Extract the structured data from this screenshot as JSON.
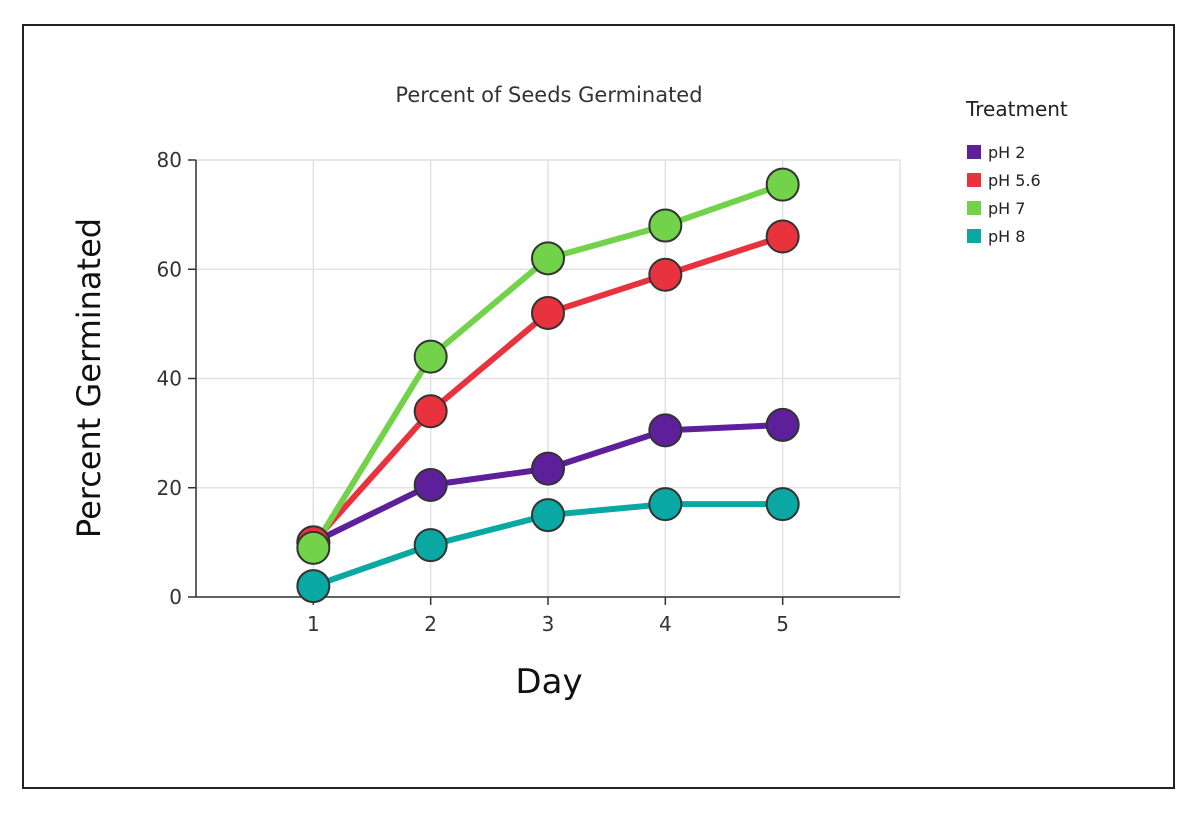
{
  "chart_data": {
    "type": "line",
    "title": "Percent of Seeds Germinated",
    "xlabel": "Day",
    "ylabel": "Percent Germinated",
    "x": [
      1,
      2,
      3,
      4,
      5
    ],
    "xlim": [
      0,
      6
    ],
    "ylim": [
      0,
      80
    ],
    "yticks": [
      0,
      20,
      40,
      60,
      80
    ],
    "xticks": [
      1,
      2,
      3,
      4,
      5
    ],
    "grid": true,
    "legend": {
      "title": "Treatment",
      "position": "right"
    },
    "series": [
      {
        "name": "pH 2",
        "color": "#5e1f9a",
        "values": [
          10,
          20.5,
          23.5,
          30.5,
          31.5
        ]
      },
      {
        "name": "pH 5.6",
        "color": "#e8333f",
        "values": [
          10,
          34,
          52,
          59,
          66
        ]
      },
      {
        "name": "pH 7",
        "color": "#72d24a",
        "values": [
          9,
          44,
          62,
          68,
          75.5
        ]
      },
      {
        "name": "pH 8",
        "color": "#0aa8a3",
        "values": [
          2,
          9.5,
          15,
          17,
          17
        ]
      }
    ]
  }
}
